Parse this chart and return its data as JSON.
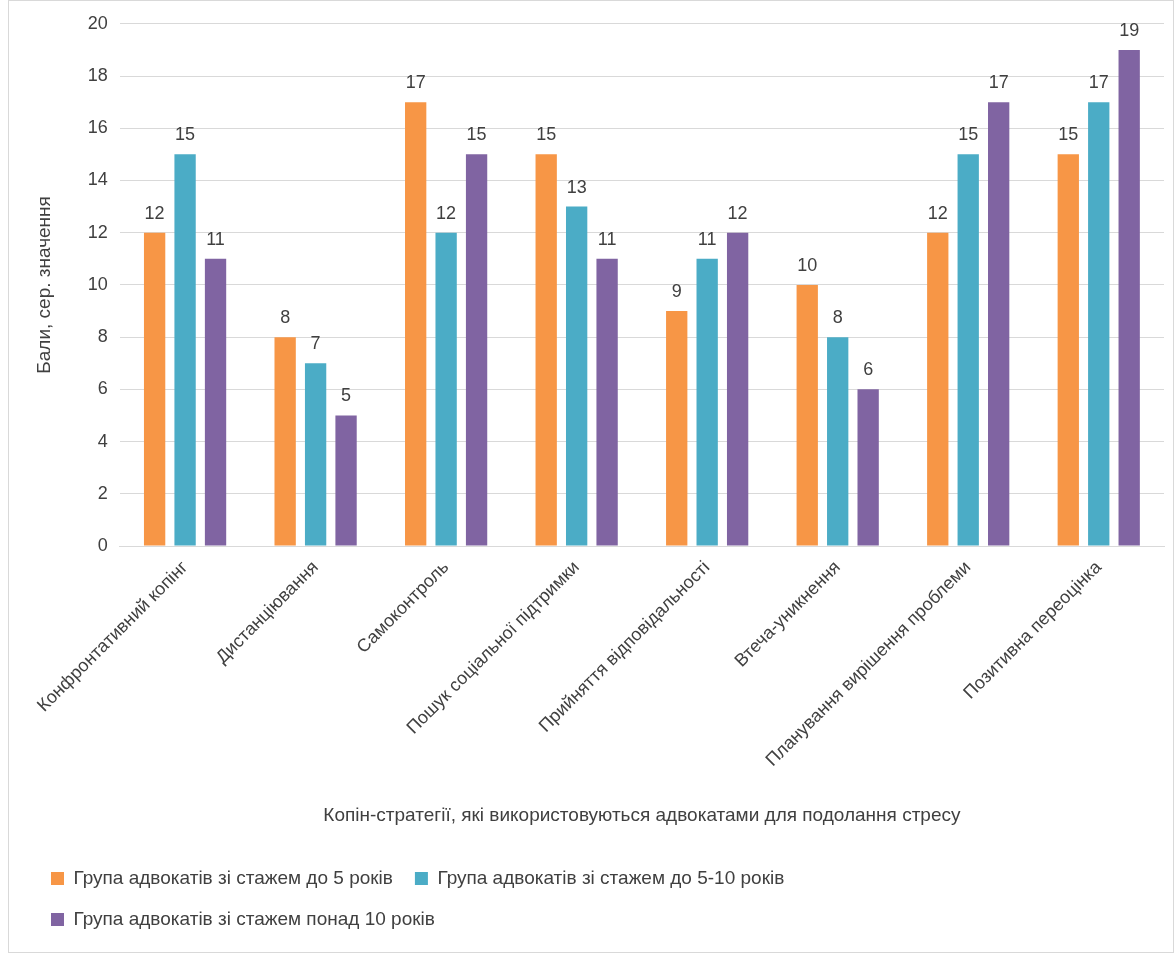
{
  "chart_data": {
    "type": "bar",
    "xlabel": "Копін-стратегії, які використовуються адвокатами для подолання стресу",
    "ylabel": "Бали, сер. значення",
    "categories": [
      "Конфронтативний копінг",
      "Дистанціювання",
      "Самоконтроль",
      "Пошук соціальної підтримки",
      "Прийняття відповідальності",
      "Втеча-уникнення",
      "Планування вирішення проблеми",
      "Позитивна переоцінка"
    ],
    "series": [
      {
        "name": "Група адвокатів зі стажем до 5 років",
        "color": "#f79646",
        "values": [
          12,
          8,
          17,
          15,
          9,
          10,
          12,
          15
        ]
      },
      {
        "name": "Група адвокатів зі стажем до 5-10 років",
        "color": "#4bacc6",
        "values": [
          15,
          7,
          12,
          13,
          11,
          8,
          15,
          17
        ]
      },
      {
        "name": "Група адвокатів зі стажем понад 10 років",
        "color": "#8064a2",
        "values": [
          11,
          5,
          15,
          11,
          12,
          6,
          17,
          19
        ]
      }
    ],
    "ylim": [
      0,
      20
    ],
    "yticks": [
      0,
      2,
      4,
      6,
      8,
      10,
      12,
      14,
      16,
      18,
      20
    ],
    "grid": "y",
    "legend": "bottom",
    "data_labels": true
  }
}
